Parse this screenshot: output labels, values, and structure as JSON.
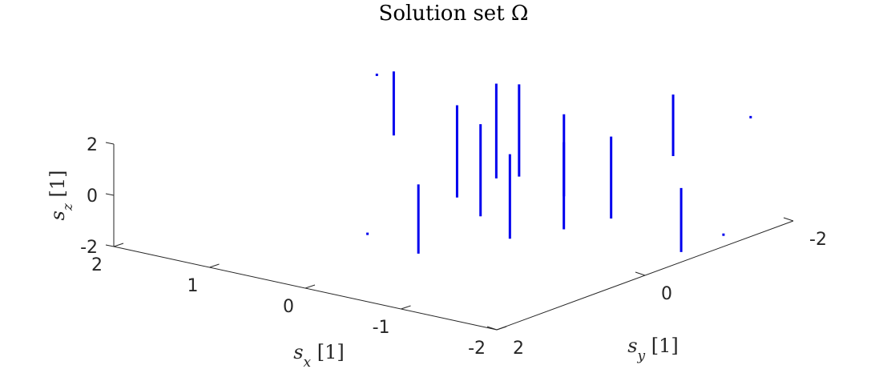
{
  "chart_data": {
    "type": "scatter",
    "projection": "3d",
    "title": "Solution set Ω",
    "xlabel": "s_x [1]",
    "ylabel": "s_y [1]",
    "zlabel": "s_z [1]",
    "xlim": [
      -2,
      2
    ],
    "ylim": [
      -2,
      2
    ],
    "zlim": [
      -2,
      2
    ],
    "xticks": [
      2,
      1,
      0,
      -1,
      -2
    ],
    "yticks": [
      2,
      0,
      -2
    ],
    "zticks": [
      2,
      0,
      -2
    ],
    "grid": false,
    "series_color": "#0000ee",
    "segments": [
      {
        "x": 1.42,
        "y": -0.8,
        "z": [
          2.2,
          2.2
        ]
      },
      {
        "x": 1.05,
        "y": -0.55,
        "z": [
          0.4,
          2.9
        ]
      },
      {
        "x": 0.38,
        "y": 0.67,
        "z": [
          -1.6,
          -1.6
        ]
      },
      {
        "x": 0.15,
        "y": 0.28,
        "z": [
          -2.6,
          0.1
        ]
      },
      {
        "x": 0.35,
        "y": -0.5,
        "z": [
          -1.4,
          2.2
        ]
      },
      {
        "x": 0.25,
        "y": -0.9,
        "z": [
          -1.0,
          2.7
        ]
      },
      {
        "x": -0.05,
        "y": -0.3,
        "z": [
          -1.6,
          2.0
        ]
      },
      {
        "x": -0.05,
        "y": -0.82,
        "z": [
          -0.6,
          3.0
        ]
      },
      {
        "x": -0.55,
        "y": -0.05,
        "z": [
          -1.8,
          1.5
        ]
      },
      {
        "x": -0.65,
        "y": -0.65,
        "z": [
          -0.7,
          2.5
        ]
      },
      {
        "x": -0.92,
        "y": -0.3,
        "z": [
          -1.4,
          2.0
        ]
      },
      {
        "x": -1.22,
        "y": -0.55,
        "z": [
          -1.0,
          2.2
        ]
      },
      {
        "x": -1.38,
        "y": -1.18,
        "z": [
          0.9,
          3.3
        ]
      },
      {
        "x": -1.82,
        "y": -0.72,
        "z": [
          -2.0,
          0.5
        ]
      },
      {
        "x": -1.88,
        "y": -1.58,
        "z": [
          2.4,
          2.4
        ]
      },
      {
        "x": -2.2,
        "y": -0.8,
        "z": [
          -1.1,
          -1.1
        ]
      }
    ]
  }
}
